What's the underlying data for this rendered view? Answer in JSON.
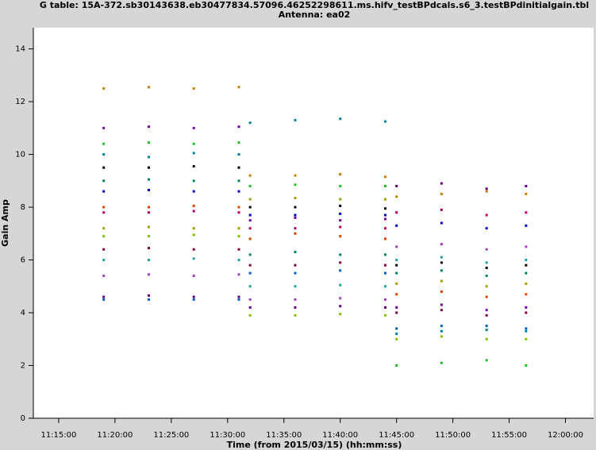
{
  "chart_data": {
    "type": "scatter",
    "title": "G table: 15A-372.sb30143638.eb30477834.57096.46252298611.ms.hifv_testBPdcals.s6_3.testBPdinitialgain.tbl",
    "subtitle": "Antenna: ea02",
    "x_label": "Time (from 2015/03/15) (hh:mm:ss)",
    "y_label": "Gain Amp",
    "xlim": [
      672.75,
      722.5
    ],
    "xticks": [
      {
        "value": 675,
        "label": "11:15:00"
      },
      {
        "value": 680,
        "label": "11:20:00"
      },
      {
        "value": 685,
        "label": "11:25:00"
      },
      {
        "value": 690,
        "label": "11:30:00"
      },
      {
        "value": 695,
        "label": "11:35:00"
      },
      {
        "value": 700,
        "label": "11:40:00"
      },
      {
        "value": 705,
        "label": "11:45:00"
      },
      {
        "value": 710,
        "label": "11:50:00"
      },
      {
        "value": 715,
        "label": "11:55:00"
      },
      {
        "value": 720,
        "label": "12:00:00"
      }
    ],
    "ylim": [
      0,
      14.8
    ],
    "yticks": [
      0,
      2,
      4,
      6,
      8,
      10,
      12,
      14
    ],
    "x": [
      679,
      683,
      687,
      691,
      692,
      696,
      700,
      704,
      705,
      709,
      713,
      716.5
    ],
    "series": [
      {
        "color": "#c08000",
        "values": [
          12.5,
          12.55,
          12.5,
          12.55,
          9.2,
          9.2,
          9.25,
          9.15,
          8.4,
          8.5,
          8.6,
          8.5
        ]
      },
      {
        "color": "#0080a0",
        "values": [
          10.0,
          9.9,
          10.05,
          10.0,
          11.2,
          11.3,
          11.35,
          11.25,
          3.2,
          3.3,
          3.35,
          3.3
        ]
      },
      {
        "color": "#7000a0",
        "values": [
          11.0,
          11.05,
          11.0,
          11.05,
          7.5,
          7.6,
          7.5,
          7.55,
          4.2,
          4.3,
          4.1,
          4.2
        ]
      },
      {
        "color": "#000000",
        "values": [
          9.5,
          9.5,
          9.55,
          9.5,
          8.0,
          8.0,
          8.05,
          7.95,
          5.8,
          5.9,
          5.7,
          5.8
        ]
      },
      {
        "color": "#20c020",
        "values": [
          10.4,
          10.45,
          10.4,
          10.45,
          8.8,
          8.85,
          8.8,
          8.8,
          2.0,
          2.1,
          2.2,
          2.0
        ]
      },
      {
        "color": "#a0a000",
        "values": [
          7.2,
          7.25,
          7.2,
          7.2,
          8.3,
          8.35,
          8.3,
          8.3,
          5.1,
          5.2,
          5.0,
          5.1
        ]
      },
      {
        "color": "#e04000",
        "values": [
          8.0,
          8.0,
          8.05,
          8.0,
          6.8,
          7.0,
          6.9,
          6.8,
          4.7,
          4.8,
          4.6,
          4.7
        ]
      },
      {
        "color": "#0000c0",
        "values": [
          8.6,
          8.65,
          8.6,
          8.6,
          7.7,
          7.7,
          7.75,
          7.7,
          7.3,
          7.4,
          7.2,
          7.3
        ]
      },
      {
        "color": "#a040c0",
        "values": [
          5.4,
          5.45,
          5.4,
          5.45,
          4.5,
          4.5,
          4.55,
          4.5,
          6.5,
          6.6,
          6.4,
          6.5
        ]
      },
      {
        "color": "#0060c0",
        "values": [
          4.5,
          4.5,
          4.5,
          4.5,
          5.5,
          5.5,
          5.6,
          5.5,
          3.4,
          3.5,
          3.5,
          3.4
        ]
      },
      {
        "color": "#80c000",
        "values": [
          6.9,
          6.9,
          6.95,
          6.9,
          3.9,
          3.9,
          3.95,
          3.9,
          3.0,
          3.1,
          3.0,
          3.0
        ]
      },
      {
        "color": "#800040",
        "values": [
          6.4,
          6.45,
          6.4,
          6.4,
          5.8,
          5.8,
          5.9,
          5.8,
          4.0,
          4.1,
          3.9,
          4.0
        ]
      },
      {
        "color": "#008060",
        "values": [
          9.0,
          9.05,
          9.0,
          9.0,
          6.2,
          6.3,
          6.2,
          6.2,
          5.5,
          5.6,
          5.4,
          5.5
        ]
      },
      {
        "color": "#600080",
        "values": [
          4.6,
          4.65,
          4.6,
          4.6,
          4.2,
          4.2,
          4.25,
          4.2,
          8.8,
          8.9,
          8.7,
          8.8
        ]
      },
      {
        "color": "#20a0a0",
        "values": [
          6.0,
          6.0,
          6.05,
          6.0,
          5.0,
          5.0,
          5.05,
          5.0,
          6.0,
          6.1,
          5.9,
          6.0
        ]
      },
      {
        "color": "#c00060",
        "values": [
          7.8,
          7.8,
          7.85,
          7.8,
          7.2,
          7.2,
          7.25,
          7.2,
          7.8,
          7.9,
          7.7,
          7.8
        ]
      }
    ]
  }
}
